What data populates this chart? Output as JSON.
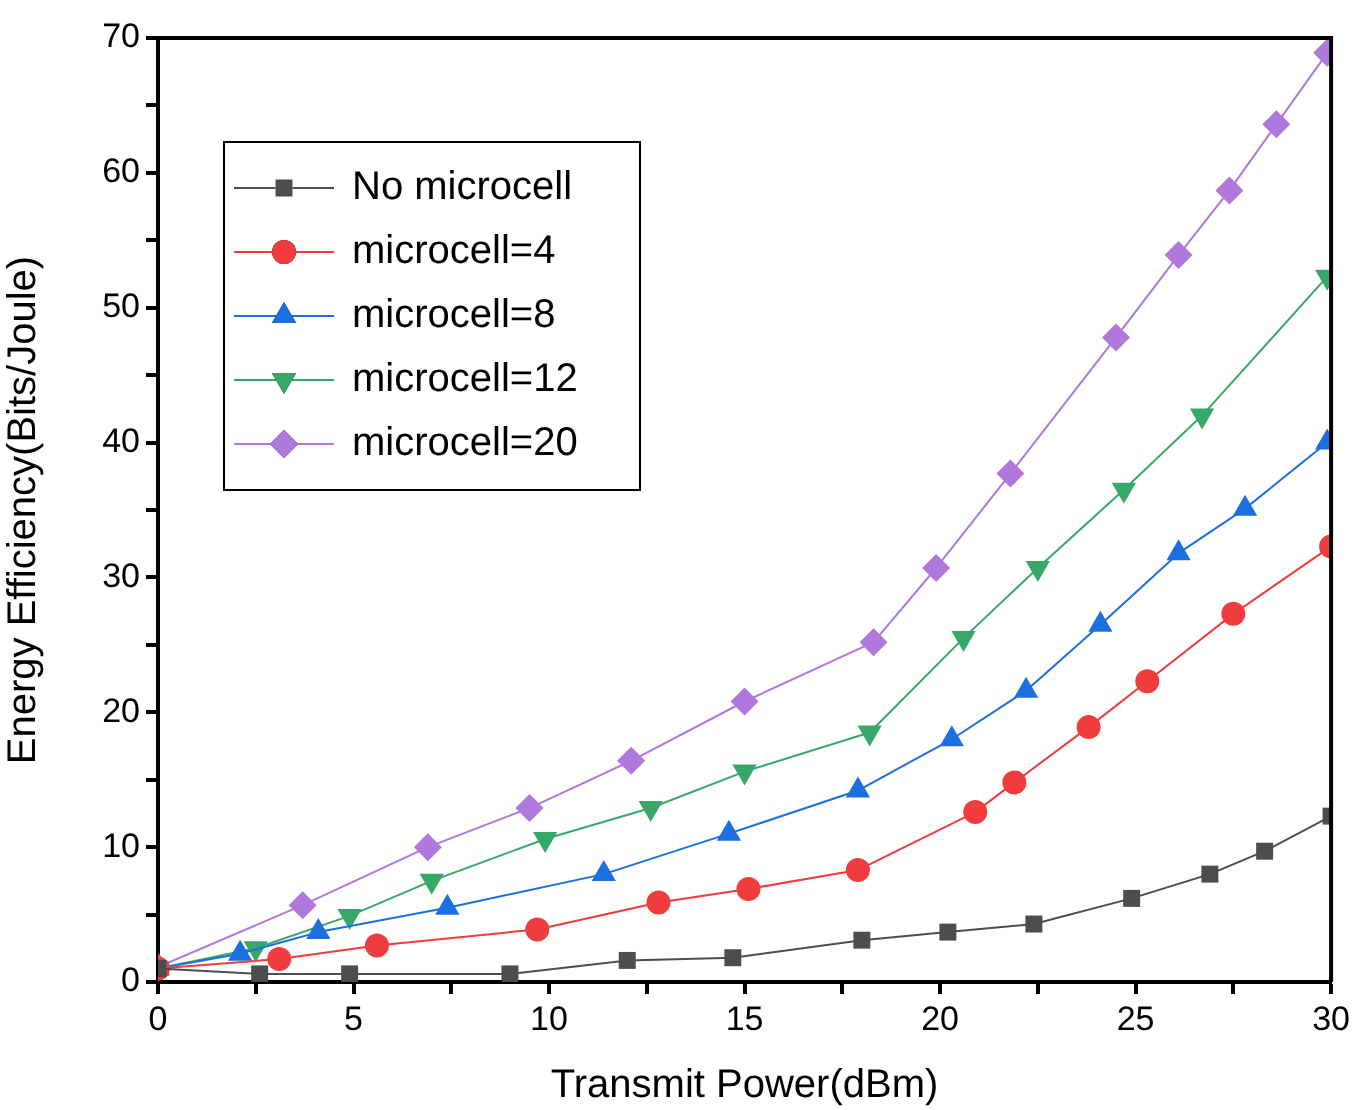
{
  "chart_data": {
    "type": "line",
    "xlabel": "Transmit Power(dBm)",
    "ylabel": "Energy Efficiency(Bits/Joule)",
    "xlim": [
      0,
      30
    ],
    "ylim": [
      0,
      70
    ],
    "xticks": [
      0,
      {
        "value": 2.5,
        "label": null
      },
      5,
      {
        "value": 7.5,
        "label": null
      },
      10,
      {
        "value": 12.5,
        "label": null
      },
      15,
      {
        "value": 17.5,
        "label": null
      },
      20,
      {
        "value": 22.5,
        "label": null
      },
      25,
      {
        "value": 27.5,
        "label": null
      },
      30
    ],
    "yticks": [
      0,
      {
        "value": 5,
        "label": null
      },
      10,
      {
        "value": 15,
        "label": null
      },
      20,
      {
        "value": 25,
        "label": null
      },
      30,
      {
        "value": 35,
        "label": null
      },
      40,
      {
        "value": 45,
        "label": null
      },
      50,
      {
        "value": 55,
        "label": null
      },
      60,
      {
        "value": 65,
        "label": null
      },
      70
    ],
    "grid": false,
    "legend": "top left",
    "line_style": "solid",
    "series": [
      {
        "name": "No microcell",
        "color": "#4d4d4d",
        "marker": "square",
        "x": [
          0,
          2.6,
          4.9,
          9.0,
          12.0,
          14.7,
          18.0,
          20.2,
          22.4,
          24.9,
          26.9,
          28.3,
          30.0
        ],
        "values": [
          1.0,
          0.6,
          0.6,
          0.6,
          1.6,
          1.8,
          3.1,
          3.7,
          4.3,
          6.2,
          8.0,
          9.7,
          12.3
        ]
      },
      {
        "name": "microcell=4",
        "color": "#f03c3c",
        "marker": "circle",
        "x": [
          0,
          3.1,
          5.6,
          9.7,
          12.8,
          15.1,
          17.9,
          20.9,
          21.9,
          23.8,
          25.3,
          27.5,
          30.0
        ],
        "values": [
          1.0,
          1.7,
          2.7,
          3.9,
          5.9,
          6.9,
          8.3,
          12.6,
          14.8,
          18.9,
          22.3,
          27.3,
          32.3
        ]
      },
      {
        "name": "microcell=8",
        "color": "#1c6fe0",
        "marker": "triangle",
        "x": [
          0,
          2.1,
          4.1,
          7.4,
          11.4,
          14.6,
          17.9,
          20.3,
          22.2,
          24.1,
          26.1,
          27.8,
          29.9
        ],
        "values": [
          1.0,
          2.1,
          3.7,
          5.5,
          8.0,
          11.0,
          14.2,
          18.0,
          21.6,
          26.5,
          31.8,
          35.1,
          40.0
        ]
      },
      {
        "name": "microcell=12",
        "color": "#38a86a",
        "marker": "triangle-down",
        "x": [
          0,
          2.5,
          4.9,
          7.0,
          9.9,
          12.6,
          15.0,
          18.2,
          20.6,
          22.5,
          24.7,
          26.7,
          29.9
        ],
        "values": [
          1.0,
          2.5,
          4.9,
          7.5,
          10.6,
          12.9,
          15.6,
          18.5,
          25.5,
          30.7,
          36.5,
          42.0,
          52.3
        ]
      },
      {
        "name": "microcell=20",
        "color": "#b077dd",
        "marker": "diamond",
        "x": [
          0,
          3.7,
          6.9,
          9.5,
          12.1,
          15.0,
          18.3,
          19.9,
          21.8,
          24.5,
          26.1,
          27.4,
          28.6,
          29.9
        ],
        "values": [
          1.1,
          5.7,
          10.0,
          12.9,
          16.4,
          20.8,
          25.2,
          30.7,
          37.7,
          47.8,
          53.9,
          58.7,
          63.6,
          68.9
        ]
      }
    ]
  }
}
